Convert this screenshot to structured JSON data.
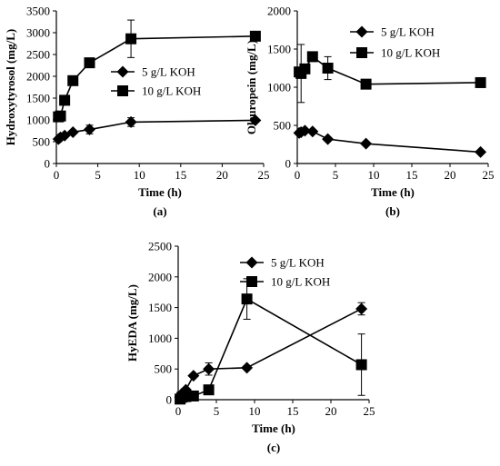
{
  "chart_data": [
    {
      "type": "line",
      "panel_label": "(a)",
      "xlabel": "Time (h)",
      "ylabel": "Hydroxytyrosol (mg/L)",
      "xlim": [
        0,
        25
      ],
      "ylim": [
        0,
        3500
      ],
      "xticks": [
        0,
        5,
        10,
        15,
        20,
        25
      ],
      "yticks": [
        0,
        500,
        1000,
        1500,
        2000,
        2500,
        3000,
        3500
      ],
      "grid": false,
      "legend": "center-right",
      "series": [
        {
          "name": "5 g/L KOH",
          "marker": "diamond",
          "x": [
            0.25,
            0.5,
            1,
            2,
            4,
            9,
            24
          ],
          "y": [
            560,
            600,
            640,
            720,
            780,
            950,
            990
          ],
          "err": [
            0,
            0,
            0,
            0,
            100,
            100,
            0
          ]
        },
        {
          "name": "10 g/L KOH",
          "marker": "square",
          "x": [
            0.25,
            0.5,
            1,
            2,
            4,
            9,
            24
          ],
          "y": [
            1070,
            1090,
            1450,
            1900,
            2310,
            2860,
            2920
          ],
          "err": [
            0,
            0,
            0,
            0,
            0,
            430,
            0
          ]
        }
      ]
    },
    {
      "type": "line",
      "panel_label": "(b)",
      "xlabel": "Time (h)",
      "ylabel": "Oleuropein (mg/L)",
      "xlim": [
        0,
        25
      ],
      "ylim": [
        0,
        2000
      ],
      "xticks": [
        0,
        5,
        10,
        15,
        20,
        25
      ],
      "yticks": [
        0,
        500,
        1000,
        1500,
        2000
      ],
      "grid": false,
      "legend": "top-right",
      "series": [
        {
          "name": "5 g/L KOH",
          "marker": "diamond",
          "x": [
            0.25,
            0.5,
            1,
            2,
            4,
            9,
            24
          ],
          "y": [
            400,
            410,
            430,
            420,
            320,
            260,
            150
          ],
          "err": [
            0,
            0,
            0,
            0,
            0,
            0,
            0
          ]
        },
        {
          "name": "10 g/L KOH",
          "marker": "square",
          "x": [
            0.25,
            0.5,
            1,
            2,
            4,
            9,
            24
          ],
          "y": [
            1200,
            1180,
            1240,
            1400,
            1250,
            1040,
            1060
          ],
          "err": [
            0,
            380,
            0,
            0,
            150,
            0,
            0
          ]
        }
      ]
    },
    {
      "type": "line",
      "panel_label": "(c)",
      "xlabel": "Time (h)",
      "ylabel": "HyEDA (mg/L)",
      "xlim": [
        0,
        25
      ],
      "ylim": [
        0,
        2500
      ],
      "xticks": [
        0,
        5,
        10,
        15,
        20,
        25
      ],
      "yticks": [
        0,
        500,
        1000,
        1500,
        2000,
        2500
      ],
      "grid": false,
      "legend": "top-right",
      "series": [
        {
          "name": "5 g/L KOH",
          "marker": "diamond",
          "x": [
            0.25,
            0.5,
            1,
            2,
            4,
            9,
            24
          ],
          "y": [
            40,
            100,
            160,
            390,
            500,
            520,
            1480
          ],
          "err": [
            0,
            0,
            0,
            0,
            100,
            0,
            100
          ]
        },
        {
          "name": "10 g/L KOH",
          "marker": "square",
          "x": [
            0.25,
            0.5,
            1,
            2,
            4,
            9,
            24
          ],
          "y": [
            10,
            40,
            50,
            60,
            160,
            1640,
            570
          ],
          "err": [
            0,
            0,
            0,
            0,
            0,
            330,
            500
          ]
        }
      ]
    }
  ]
}
